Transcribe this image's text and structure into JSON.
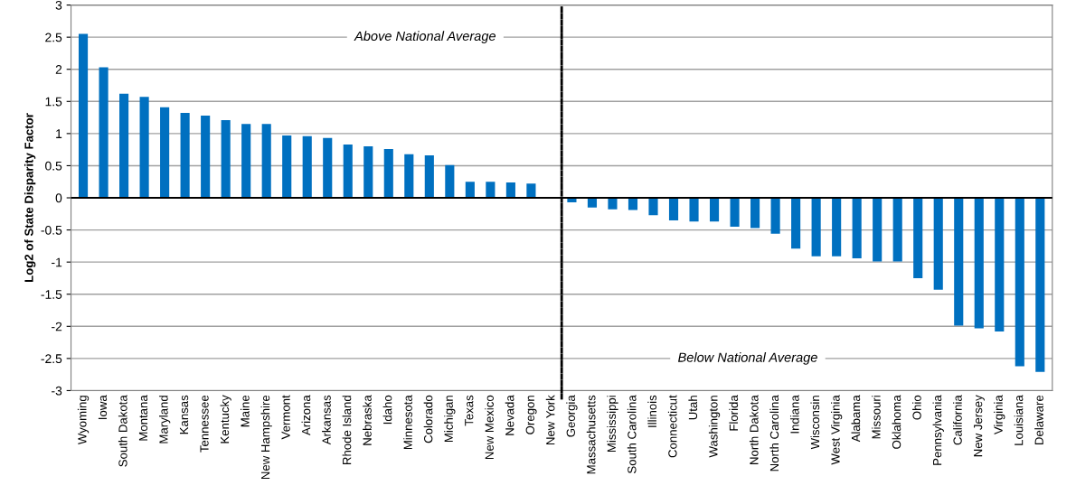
{
  "chart_data": {
    "type": "bar",
    "ylabel": "Log2 of State Disparity Factor",
    "categories": [
      "Wyoming",
      "Iowa",
      "South Dakota",
      "Montana",
      "Maryland",
      "Kansas",
      "Tennessee",
      "Kentucky",
      "Maine",
      "New Hampshire",
      "Vermont",
      "Arizona",
      "Arkansas",
      "Rhode Island",
      "Nebraska",
      "Idaho",
      "Minnesota",
      "Colorado",
      "Michigan",
      "Texas",
      "New Mexico",
      "Nevada",
      "Oregon",
      "New York",
      "Georgia",
      "Massachusetts",
      "Mississippi",
      "South Carolina",
      "Illinois",
      "Connecticut",
      "Utah",
      "Washington",
      "Florida",
      "North Dakota",
      "North Carolina",
      "Indiana",
      "Wisconsin",
      "West Virginia",
      "Alabama",
      "Missouri",
      "Oklahoma",
      "Ohio",
      "Pennsylvania",
      "California",
      "New Jersey",
      "Virginia",
      "Louisiana",
      "Delaware"
    ],
    "values": [
      2.55,
      2.03,
      1.62,
      1.57,
      1.41,
      1.32,
      1.28,
      1.21,
      1.15,
      1.15,
      0.97,
      0.96,
      0.93,
      0.83,
      0.8,
      0.76,
      0.68,
      0.66,
      0.51,
      0.25,
      0.25,
      0.24,
      0.22,
      null,
      -0.07,
      -0.15,
      -0.18,
      -0.19,
      -0.27,
      -0.35,
      -0.37,
      -0.37,
      -0.45,
      -0.47,
      -0.56,
      -0.79,
      -0.91,
      -0.91,
      -0.94,
      -0.99,
      -0.99,
      -1.25,
      -1.43,
      -1.99,
      -2.03,
      -2.08,
      -2.62,
      -2.71
    ],
    "color": "#0070c0",
    "ylim": [
      -3,
      3
    ],
    "yticks": [
      -3,
      -2.5,
      -2,
      -1.5,
      -1,
      -0.5,
      0,
      0.5,
      1,
      1.5,
      2,
      2.5,
      3
    ],
    "grid": "y",
    "annotations": [
      "Above National Average",
      "Below National Average"
    ]
  }
}
